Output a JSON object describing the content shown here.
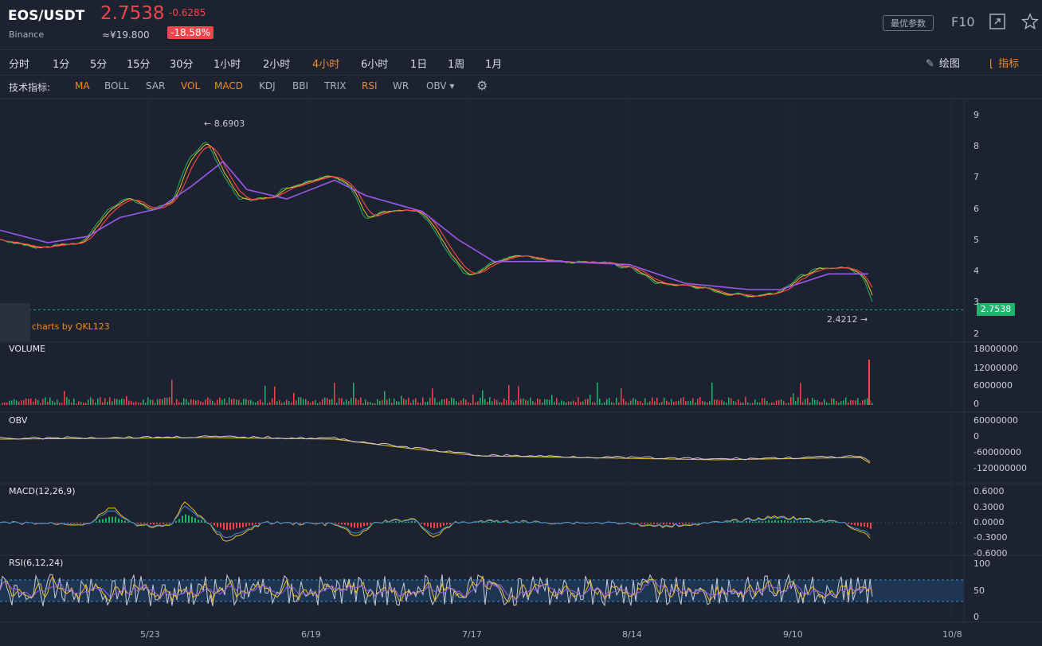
{
  "header": {
    "symbol": "EOS/USDT",
    "exchange": "Binance",
    "price": "2.7538",
    "change": "-0.6285",
    "cny_price": "≈¥19.800",
    "change_pct": "-18.58%",
    "params_button": "最优参数",
    "f10": "F10",
    "icons": [
      "expand-icon",
      "star-icon"
    ]
  },
  "periods": [
    "分时",
    "1分",
    "5分",
    "15分",
    "30分",
    "1小时",
    "2小时",
    "4小时",
    "6小时",
    "1日",
    "1周",
    "1月"
  ],
  "active_period": "4小时",
  "tools": {
    "draw": "绘图",
    "indicators": "指标"
  },
  "indicator_bar": {
    "label": "技术指标:",
    "items": [
      {
        "name": "MA",
        "active": true
      },
      {
        "name": "BOLL",
        "active": false
      },
      {
        "name": "SAR",
        "active": false
      },
      {
        "name": "VOL",
        "active": true
      },
      {
        "name": "MACD",
        "active": true
      },
      {
        "name": "KDJ",
        "active": false
      },
      {
        "name": "BBI",
        "active": false
      },
      {
        "name": "TRIX",
        "active": false
      },
      {
        "name": "RSI",
        "active": true
      },
      {
        "name": "WR",
        "active": false
      },
      {
        "name": "OBV ▾",
        "active": false
      }
    ]
  },
  "main_chart": {
    "y_ticks": [
      "9",
      "8",
      "7",
      "6",
      "5",
      "4",
      "3",
      "2"
    ],
    "high_label": "← 8.6903",
    "low_label": "2.4212 →",
    "last_price_tag": "2.7538",
    "watermark": "charts by QKL123"
  },
  "panes": {
    "volume": {
      "label": "VOLUME",
      "ticks": [
        "18000000",
        "12000000",
        "6000000",
        "0"
      ]
    },
    "obv": {
      "label": "OBV",
      "ticks": [
        "60000000",
        "0",
        "-60000000",
        "-120000000"
      ]
    },
    "macd": {
      "label": "MACD(12,26,9)",
      "ticks": [
        "0.6000",
        "0.3000",
        "0.0000",
        "-0.3000",
        "-0.6000"
      ]
    },
    "rsi": {
      "label": "RSI(6,12,24)",
      "ticks": [
        "100",
        "50",
        "0"
      ]
    }
  },
  "x_labels": [
    "5/23",
    "6/19",
    "7/17",
    "8/14",
    "9/10",
    "10/8"
  ],
  "colors": {
    "up": "#1fb36b",
    "down": "#f0454a",
    "accent": "#f08a24",
    "ma_purple": "#9b59f0"
  },
  "chart_data": {
    "type": "line",
    "x_labels": [
      "5/23",
      "6/19",
      "7/17",
      "8/14",
      "9/10",
      "10/8"
    ],
    "ylim": [
      2,
      9
    ],
    "price_points": [
      [
        0,
        5.0
      ],
      [
        40,
        4.75
      ],
      [
        100,
        4.9
      ],
      [
        130,
        5.9
      ],
      [
        160,
        6.4
      ],
      [
        185,
        5.9
      ],
      [
        215,
        6.3
      ],
      [
        235,
        7.6
      ],
      [
        255,
        8.2
      ],
      [
        275,
        7.2
      ],
      [
        295,
        6.3
      ],
      [
        330,
        6.3
      ],
      [
        360,
        6.7
      ],
      [
        410,
        7.1
      ],
      [
        440,
        6.6
      ],
      [
        455,
        5.7
      ],
      [
        480,
        5.9
      ],
      [
        520,
        5.9
      ],
      [
        540,
        5.4
      ],
      [
        560,
        4.5
      ],
      [
        585,
        3.8
      ],
      [
        615,
        4.3
      ],
      [
        650,
        4.5
      ],
      [
        700,
        4.3
      ],
      [
        740,
        4.3
      ],
      [
        790,
        4.1
      ],
      [
        820,
        3.6
      ],
      [
        870,
        3.5
      ],
      [
        900,
        3.3
      ],
      [
        940,
        3.2
      ],
      [
        970,
        3.3
      ],
      [
        1000,
        3.8
      ],
      [
        1030,
        4.1
      ],
      [
        1060,
        4.1
      ],
      [
        1080,
        3.9
      ],
      [
        1095,
        2.75
      ]
    ],
    "ma_points": [
      [
        0,
        5.3
      ],
      [
        60,
        4.9
      ],
      [
        110,
        5.1
      ],
      [
        150,
        5.7
      ],
      [
        200,
        6.0
      ],
      [
        240,
        6.7
      ],
      [
        280,
        7.5
      ],
      [
        310,
        6.6
      ],
      [
        360,
        6.3
      ],
      [
        420,
        6.9
      ],
      [
        460,
        6.4
      ],
      [
        530,
        5.9
      ],
      [
        575,
        5.0
      ],
      [
        620,
        4.3
      ],
      [
        700,
        4.3
      ],
      [
        790,
        4.2
      ],
      [
        860,
        3.6
      ],
      [
        940,
        3.4
      ],
      [
        980,
        3.4
      ],
      [
        1040,
        3.9
      ],
      [
        1090,
        3.9
      ]
    ],
    "high": 8.6903,
    "low": 2.4212,
    "last": 2.7538
  }
}
